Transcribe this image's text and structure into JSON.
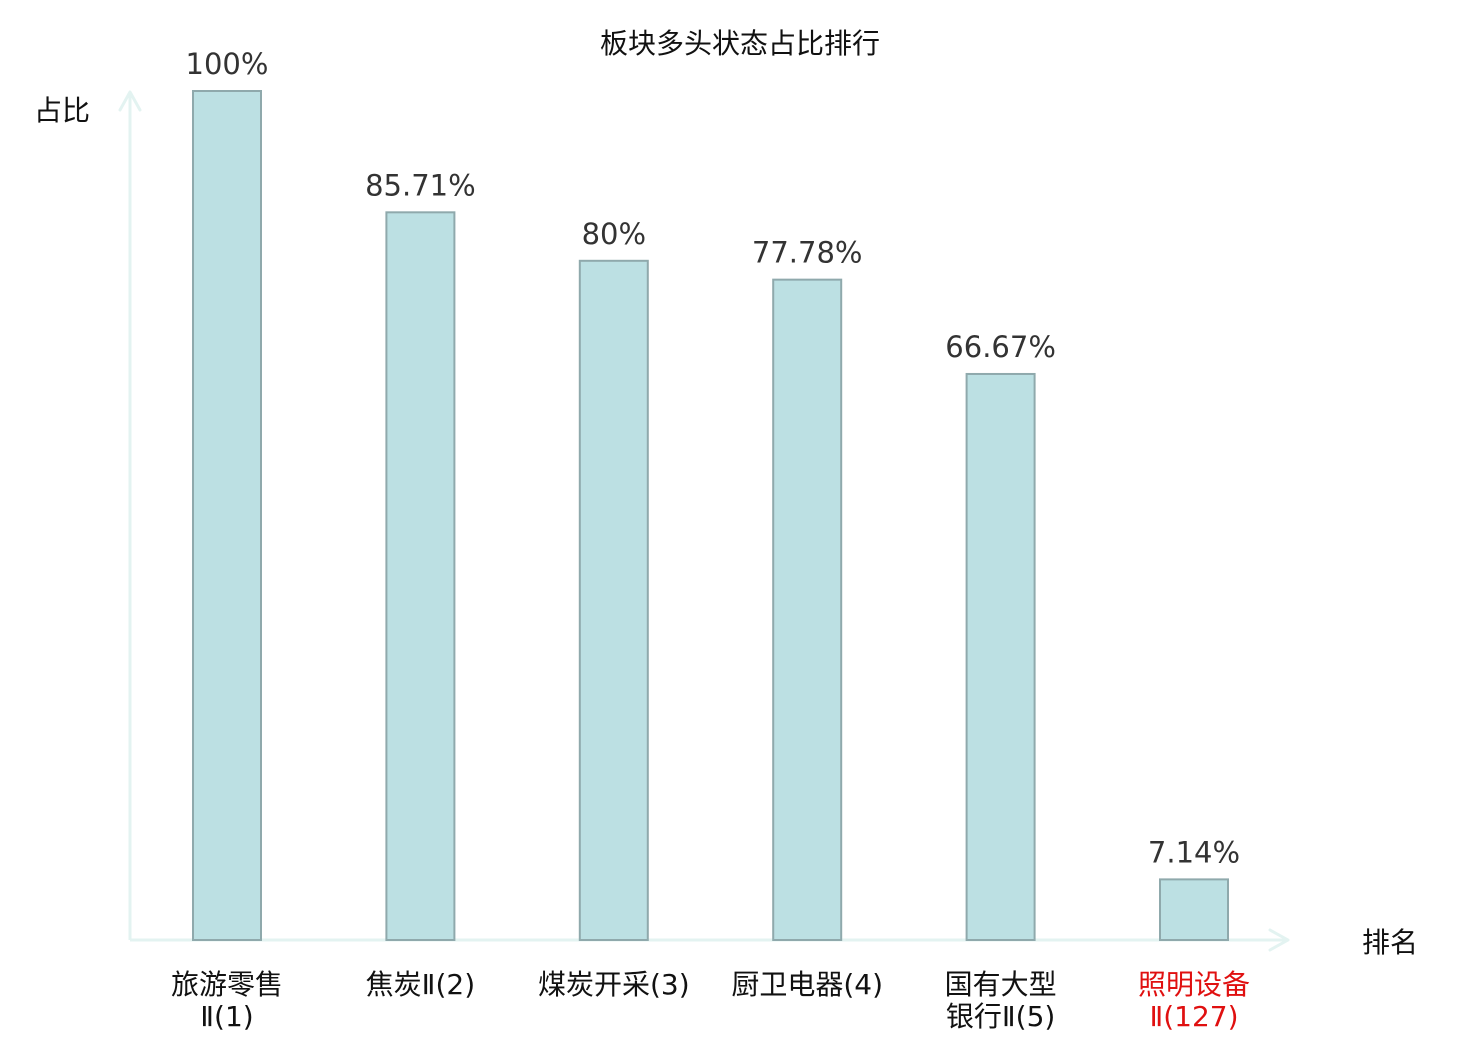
{
  "chart_data": {
    "type": "bar",
    "title": "板块多头状态占比排行",
    "ylabel": "占比",
    "xlabel": "排名",
    "ylim": [
      0,
      100
    ],
    "unit": "%",
    "grid": false,
    "categories": [
      [
        "旅游零售",
        "Ⅱ(1)"
      ],
      [
        "焦炭Ⅱ(2)"
      ],
      [
        "煤炭开采(3)"
      ],
      [
        "厨卫电器(4)"
      ],
      [
        "国有大型",
        "银行Ⅱ(5)"
      ],
      [
        "照明设备",
        "Ⅱ(127)"
      ]
    ],
    "values": [
      100,
      85.71,
      80,
      77.78,
      66.67,
      7.14
    ],
    "value_labels": [
      "100%",
      "85.71%",
      "80%",
      "77.78%",
      "66.67%",
      "7.14%"
    ],
    "highlight_index": 5
  },
  "colors": {
    "bar_fill": "#bce0e3",
    "bar_stroke": "#8fa9ac",
    "axis": "#e3f3f1",
    "text": "#333333",
    "title_text": "#111111",
    "highlight_text": "#e01010"
  }
}
